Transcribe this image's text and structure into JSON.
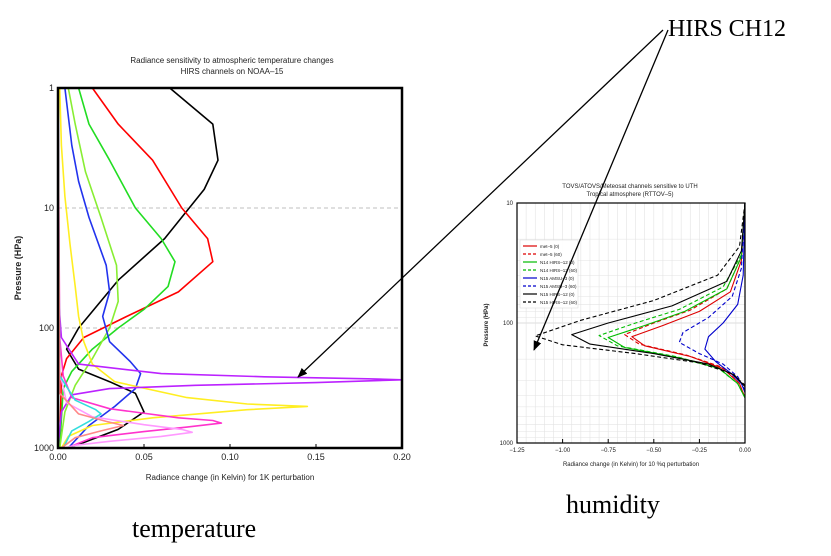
{
  "annotation": {
    "label": "HIRS CH12"
  },
  "captions": {
    "left": "temperature",
    "right": "humidity"
  },
  "chart_data": [
    {
      "type": "line",
      "title": "Radiance sensitivity to atmospheric temperature changes",
      "subtitle": "HIRS channels on NOAA–15",
      "xlabel": "Radiance change (in Kelvin) for 1K  perturbation",
      "ylabel": "Pressure (HPa)",
      "xlim": [
        0,
        0.2
      ],
      "ylim": [
        1000,
        1
      ],
      "y_scale": "log",
      "x_ticks": [
        "0.00",
        "0.05",
        "0.10",
        "0.15",
        "0.20"
      ],
      "y_ticks": [
        "1",
        "10",
        "100",
        "1000"
      ],
      "grid": "dashed horizontal at decades",
      "series": [
        {
          "color": "#000000",
          "points": [
            [
              0.065,
              1
            ],
            [
              0.09,
              2
            ],
            [
              0.093,
              4
            ],
            [
              0.085,
              7
            ],
            [
              0.062,
              18
            ],
            [
              0.035,
              40
            ],
            [
              0.012,
              100
            ],
            [
              0.005,
              150
            ],
            [
              0.012,
              220
            ],
            [
              0.03,
              280
            ],
            [
              0.045,
              350
            ],
            [
              0.05,
              500
            ],
            [
              0.035,
              700
            ],
            [
              0.015,
              900
            ],
            [
              0.005,
              1000
            ]
          ]
        },
        {
          "color": "#ff0000",
          "points": [
            [
              0.02,
              1
            ],
            [
              0.035,
              2
            ],
            [
              0.055,
              4
            ],
            [
              0.072,
              10
            ],
            [
              0.087,
              18
            ],
            [
              0.09,
              28
            ],
            [
              0.07,
              50
            ],
            [
              0.04,
              80
            ],
            [
              0.015,
              120
            ],
            [
              0.005,
              180
            ],
            [
              0.002,
              250
            ],
            [
              0.001,
              1000
            ]
          ]
        },
        {
          "color": "#22dd22",
          "points": [
            [
              0.012,
              1
            ],
            [
              0.018,
              2
            ],
            [
              0.03,
              4
            ],
            [
              0.045,
              10
            ],
            [
              0.06,
              18
            ],
            [
              0.068,
              28
            ],
            [
              0.064,
              45
            ],
            [
              0.05,
              70
            ],
            [
              0.035,
              100
            ],
            [
              0.02,
              150
            ],
            [
              0.008,
              230
            ],
            [
              0.003,
              320
            ],
            [
              0.001,
              1000
            ]
          ]
        },
        {
          "color": "#88ee33",
          "points": [
            [
              0.006,
              1
            ],
            [
              0.01,
              2
            ],
            [
              0.016,
              5
            ],
            [
              0.025,
              12
            ],
            [
              0.034,
              30
            ],
            [
              0.035,
              60
            ],
            [
              0.03,
              100
            ],
            [
              0.02,
              180
            ],
            [
              0.01,
              300
            ],
            [
              0.004,
              500
            ],
            [
              0.001,
              1000
            ]
          ]
        },
        {
          "color": "#2233ee",
          "points": [
            [
              0.004,
              1
            ],
            [
              0.008,
              3
            ],
            [
              0.012,
              6
            ],
            [
              0.018,
              12
            ],
            [
              0.028,
              30
            ],
            [
              0.03,
              50
            ],
            [
              0.026,
              80
            ],
            [
              0.03,
              130
            ],
            [
              0.042,
              190
            ],
            [
              0.048,
              240
            ],
            [
              0.045,
              320
            ],
            [
              0.033,
              450
            ],
            [
              0.018,
              650
            ],
            [
              0.006,
              1000
            ]
          ]
        },
        {
          "color": "#ffee22",
          "points": [
            [
              0.001,
              1
            ],
            [
              0.002,
              3
            ],
            [
              0.004,
              8
            ],
            [
              0.007,
              20
            ],
            [
              0.01,
              45
            ],
            [
              0.012,
              80
            ],
            [
              0.015,
              130
            ],
            [
              0.02,
              200
            ],
            [
              0.033,
              280
            ],
            [
              0.075,
              380
            ],
            [
              0.11,
              430
            ],
            [
              0.145,
              450
            ],
            [
              0.11,
              480
            ],
            [
              0.055,
              560
            ],
            [
              0.02,
              650
            ],
            [
              0.006,
              800
            ],
            [
              0.002,
              1000
            ]
          ]
        },
        {
          "color": "#bb22ff",
          "points": [
            [
              0.0,
              1
            ],
            [
              0.0,
              50
            ],
            [
              0.002,
              120
            ],
            [
              0.012,
              200
            ],
            [
              0.06,
              240
            ],
            [
              0.12,
              255
            ],
            [
              0.18,
              265
            ],
            [
              0.2,
              270
            ],
            [
              0.15,
              285
            ],
            [
              0.08,
              300
            ],
            [
              0.03,
              320
            ],
            [
              0.008,
              360
            ],
            [
              0.002,
              500
            ],
            [
              0.0,
              1000
            ]
          ]
        },
        {
          "color": "#ff33cc",
          "points": [
            [
              0.0,
              1
            ],
            [
              0.001,
              120
            ],
            [
              0.003,
              250
            ],
            [
              0.008,
              380
            ],
            [
              0.03,
              470
            ],
            [
              0.07,
              560
            ],
            [
              0.09,
              590
            ],
            [
              0.095,
              620
            ],
            [
              0.075,
              670
            ],
            [
              0.05,
              730
            ],
            [
              0.02,
              820
            ],
            [
              0.005,
              1000
            ]
          ]
        },
        {
          "color": "#ff99ff",
          "points": [
            [
              0.0,
              1
            ],
            [
              0.0,
              200
            ],
            [
              0.005,
              420
            ],
            [
              0.02,
              550
            ],
            [
              0.05,
              640
            ],
            [
              0.072,
              700
            ],
            [
              0.078,
              740
            ],
            [
              0.06,
              800
            ],
            [
              0.03,
              880
            ],
            [
              0.01,
              950
            ],
            [
              0.004,
              1000
            ]
          ]
        },
        {
          "color": "#33dddd",
          "points": [
            [
              0.0,
              1
            ],
            [
              0.001,
              250
            ],
            [
              0.01,
              400
            ],
            [
              0.022,
              480
            ],
            [
              0.025,
              520
            ],
            [
              0.018,
              600
            ],
            [
              0.008,
              720
            ],
            [
              0.003,
              1000
            ]
          ]
        },
        {
          "color": "#ff8888",
          "points": [
            [
              0.0,
              1
            ],
            [
              0.001,
              350
            ],
            [
              0.012,
              520
            ],
            [
              0.028,
              600
            ],
            [
              0.038,
              650
            ],
            [
              0.025,
              720
            ],
            [
              0.01,
              820
            ],
            [
              0.002,
              1000
            ]
          ]
        }
      ]
    },
    {
      "type": "line",
      "title": "TOVS/ATOVS/Meteosat channels sensitive to UTH",
      "subtitle": "Tropical atmosphere (RTTOV–5)",
      "xlabel": "Radiance change (in Kelvin) for 10 %q perturbation",
      "ylabel": "Pressure (HPa)",
      "xlim": [
        -1.25,
        0.0
      ],
      "ylim": [
        1000,
        10
      ],
      "y_scale": "log",
      "x_ticks": [
        "−1.25",
        "−1.00",
        "−0.75",
        "−0.50",
        "−0.25",
        "0.00"
      ],
      "y_ticks": [
        "10",
        "100",
        "1000"
      ],
      "grid": "on",
      "legend": "top-left",
      "series": [
        {
          "name": "met–5 (0)",
          "color": "#dd0000",
          "dash": false,
          "points": [
            [
              0,
              10
            ],
            [
              -0.02,
              30
            ],
            [
              -0.08,
              55
            ],
            [
              -0.25,
              80
            ],
            [
              -0.45,
              105
            ],
            [
              -0.62,
              130
            ],
            [
              -0.55,
              155
            ],
            [
              -0.3,
              190
            ],
            [
              -0.12,
              240
            ],
            [
              -0.03,
              320
            ],
            [
              0,
              420
            ]
          ]
        },
        {
          "name": "met–5 (60)",
          "color": "#dd0000",
          "dash": true,
          "points": [
            [
              0,
              10
            ],
            [
              -0.02,
              28
            ],
            [
              -0.1,
              52
            ],
            [
              -0.3,
              78
            ],
            [
              -0.5,
              100
            ],
            [
              -0.66,
              125
            ],
            [
              -0.58,
              150
            ],
            [
              -0.32,
              185
            ],
            [
              -0.12,
              235
            ],
            [
              -0.03,
              320
            ],
            [
              0,
              420
            ]
          ]
        },
        {
          "name": "N14 HIRS–12 (0)",
          "color": "#00bb00",
          "dash": false,
          "points": [
            [
              0,
              10
            ],
            [
              -0.02,
              28
            ],
            [
              -0.1,
              52
            ],
            [
              -0.33,
              80
            ],
            [
              -0.55,
              105
            ],
            [
              -0.75,
              132
            ],
            [
              -0.66,
              160
            ],
            [
              -0.36,
              195
            ],
            [
              -0.14,
              240
            ],
            [
              -0.04,
              320
            ],
            [
              0,
              420
            ]
          ]
        },
        {
          "name": "N14 HIRS–12 (60)",
          "color": "#00bb00",
          "dash": true,
          "points": [
            [
              0,
              10
            ],
            [
              -0.02,
              27
            ],
            [
              -0.12,
              50
            ],
            [
              -0.36,
              77
            ],
            [
              -0.6,
              100
            ],
            [
              -0.8,
              127
            ],
            [
              -0.7,
              155
            ],
            [
              -0.38,
              190
            ],
            [
              -0.15,
              235
            ],
            [
              -0.04,
              320
            ],
            [
              0,
              420
            ]
          ]
        },
        {
          "name": "N15 AMSU–3 (0)",
          "color": "#0000cc",
          "dash": false,
          "points": [
            [
              0,
              10
            ],
            [
              -0.01,
              40
            ],
            [
              -0.04,
              70
            ],
            [
              -0.12,
              100
            ],
            [
              -0.2,
              130
            ],
            [
              -0.22,
              165
            ],
            [
              -0.16,
              210
            ],
            [
              -0.08,
              260
            ],
            [
              -0.02,
              320
            ],
            [
              0,
              380
            ]
          ]
        },
        {
          "name": "N15 AMSU–3 (60)",
          "color": "#0000cc",
          "dash": true,
          "points": [
            [
              0,
              10
            ],
            [
              -0.02,
              35
            ],
            [
              -0.07,
              60
            ],
            [
              -0.2,
              90
            ],
            [
              -0.34,
              120
            ],
            [
              -0.36,
              145
            ],
            [
              -0.25,
              180
            ],
            [
              -0.12,
              220
            ],
            [
              -0.04,
              280
            ],
            [
              0,
              360
            ]
          ]
        },
        {
          "name": "N15 HIRS–12 (0)",
          "color": "#000000",
          "dash": false,
          "points": [
            [
              0,
              10
            ],
            [
              -0.02,
              25
            ],
            [
              -0.1,
              45
            ],
            [
              -0.4,
              72
            ],
            [
              -0.75,
              100
            ],
            [
              -0.95,
              125
            ],
            [
              -0.85,
              150
            ],
            [
              -0.5,
              180
            ],
            [
              -0.2,
              220
            ],
            [
              -0.06,
              270
            ],
            [
              0,
              340
            ]
          ]
        },
        {
          "name": "N15 HIRS–12 (60)",
          "color": "#000000",
          "dash": true,
          "points": [
            [
              0,
              10
            ],
            [
              -0.03,
              23
            ],
            [
              -0.15,
              40
            ],
            [
              -0.5,
              65
            ],
            [
              -0.9,
              95
            ],
            [
              -1.15,
              128
            ],
            [
              -1.0,
              152
            ],
            [
              -0.6,
              180
            ],
            [
              -0.25,
              215
            ],
            [
              -0.07,
              265
            ],
            [
              0,
              330
            ]
          ]
        }
      ]
    }
  ]
}
